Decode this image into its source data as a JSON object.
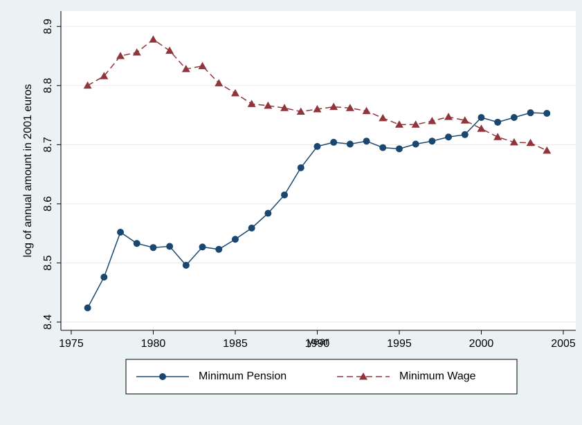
{
  "chart_data": {
    "type": "line",
    "x": [
      1976,
      1977,
      1978,
      1979,
      1980,
      1981,
      1982,
      1983,
      1984,
      1985,
      1986,
      1987,
      1988,
      1989,
      1990,
      1991,
      1992,
      1993,
      1994,
      1995,
      1996,
      1997,
      1998,
      1999,
      2000,
      2001,
      2002,
      2003,
      2004
    ],
    "series": [
      {
        "name": "Minimum Pension",
        "color": "#1a476f",
        "marker": "circle",
        "dashed": false,
        "values": [
          8.424,
          8.476,
          8.552,
          8.533,
          8.526,
          8.528,
          8.496,
          8.527,
          8.523,
          8.54,
          8.559,
          8.584,
          8.615,
          8.661,
          8.697,
          8.704,
          8.701,
          8.706,
          8.695,
          8.693,
          8.701,
          8.706,
          8.713,
          8.717,
          8.746,
          8.738,
          8.746,
          8.754,
          8.753
        ]
      },
      {
        "name": "Minimum Wage",
        "color": "#90353b",
        "marker": "triangle",
        "dashed": true,
        "values": [
          8.8,
          8.816,
          8.85,
          8.856,
          8.878,
          8.859,
          8.828,
          8.833,
          8.804,
          8.787,
          8.769,
          8.766,
          8.762,
          8.756,
          8.76,
          8.764,
          8.762,
          8.757,
          8.745,
          8.734,
          8.734,
          8.74,
          8.747,
          8.741,
          8.727,
          8.713,
          8.704,
          8.703,
          8.69
        ]
      }
    ],
    "xlabel": "year",
    "ylabel": "log of annual amount in 2001 euros",
    "xlim": [
      1974.37,
      2005.76
    ],
    "xticks": [
      1975,
      1980,
      1985,
      1990,
      1995,
      2000,
      2005
    ],
    "ylim": [
      8.386,
      8.926
    ],
    "yticks": [
      8.4,
      8.5,
      8.6,
      8.7,
      8.8,
      8.9
    ],
    "grid": true,
    "legend": "bottom"
  }
}
